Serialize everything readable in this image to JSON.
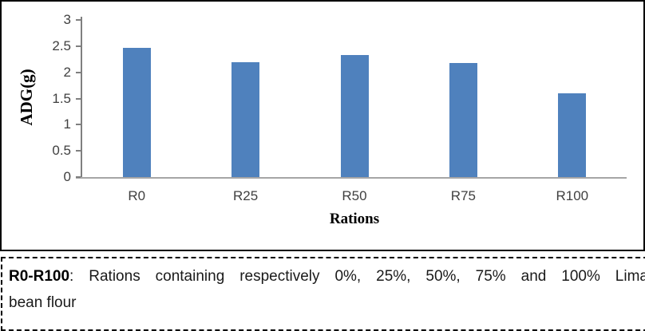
{
  "figure": {
    "caption": {
      "term": "R0-R100",
      "line1_rest": ": Rations containing respectively 0%, 25%, 50%, 75% and 100% Lima",
      "line2": "bean flour"
    }
  },
  "chart_data": {
    "type": "bar",
    "title": "",
    "categories": [
      "R0",
      "R25",
      "R50",
      "R75",
      "R100"
    ],
    "values": [
      2.47,
      2.2,
      2.33,
      2.18,
      1.6
    ],
    "xlabel": "Rations",
    "ylabel": "ADG(g)",
    "ylim": [
      0,
      3
    ],
    "ytick_step": 0.5,
    "ytick_labels": [
      "0",
      "0.5",
      "1",
      "1.5",
      "2",
      "2.5",
      "3"
    ],
    "bar_color": "#4f81bd",
    "yaxis_color": "#7f7f7f",
    "xaxis_color": "#a6a6a6",
    "grid": false,
    "legend": "none"
  }
}
